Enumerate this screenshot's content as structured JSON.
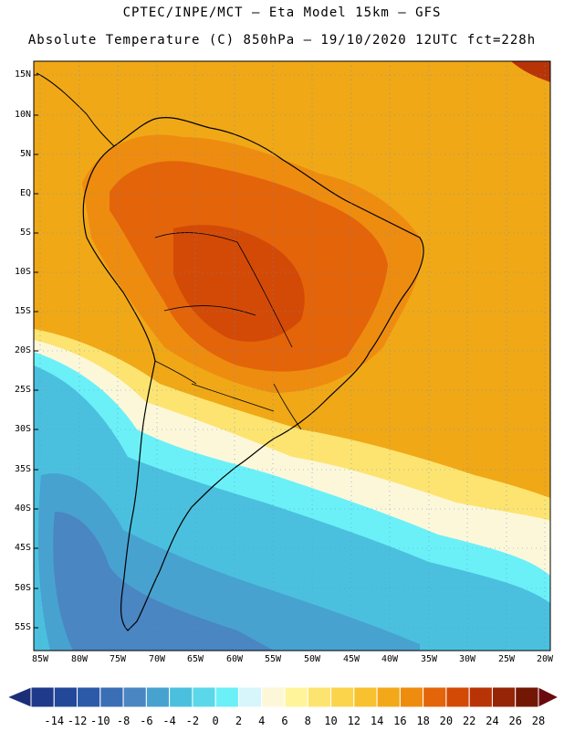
{
  "header": {
    "line1": "CPTEC/INPE/MCT –  Eta Model 15km – GFS",
    "line2": "Absolute Temperature (C) 850hPa – 19/10/2020 12UTC fct=228h"
  },
  "axes": {
    "lat_labels": [
      "15N",
      "10N",
      "5N",
      "EQ",
      "5S",
      "10S",
      "15S",
      "20S",
      "25S",
      "30S",
      "35S",
      "40S",
      "45S",
      "50S",
      "55S"
    ],
    "lon_labels": [
      "85W",
      "80W",
      "75W",
      "70W",
      "65W",
      "60W",
      "55W",
      "50W",
      "45W",
      "40W",
      "35W",
      "30W",
      "25W",
      "20W"
    ],
    "lat_range": [
      -58,
      16.5
    ],
    "lon_range": [
      -86,
      -19.5
    ]
  },
  "colorbar": {
    "labels": [
      "-14",
      "-12",
      "-10",
      "-8",
      "-6",
      "-4",
      "-2",
      "0",
      "2",
      "4",
      "6",
      "8",
      "10",
      "12",
      "14",
      "16",
      "18",
      "20",
      "22",
      "24",
      "26",
      "28"
    ],
    "colors": [
      "#1f3a8a",
      "#23489a",
      "#2c5aa8",
      "#3a6eb5",
      "#4a86c2",
      "#48a2cf",
      "#4bc0de",
      "#5ad8ea",
      "#6cf0f8",
      "#d7f6fb",
      "#fdf7da",
      "#fff49a",
      "#fde471",
      "#fbd44c",
      "#f8c12f",
      "#f3a81a",
      "#ee8c10",
      "#e4640a",
      "#d34a07",
      "#b83407",
      "#952506",
      "#731705"
    ],
    "underflow_color": "#1b2f78",
    "overflow_color": "#6a0a0f"
  }
}
